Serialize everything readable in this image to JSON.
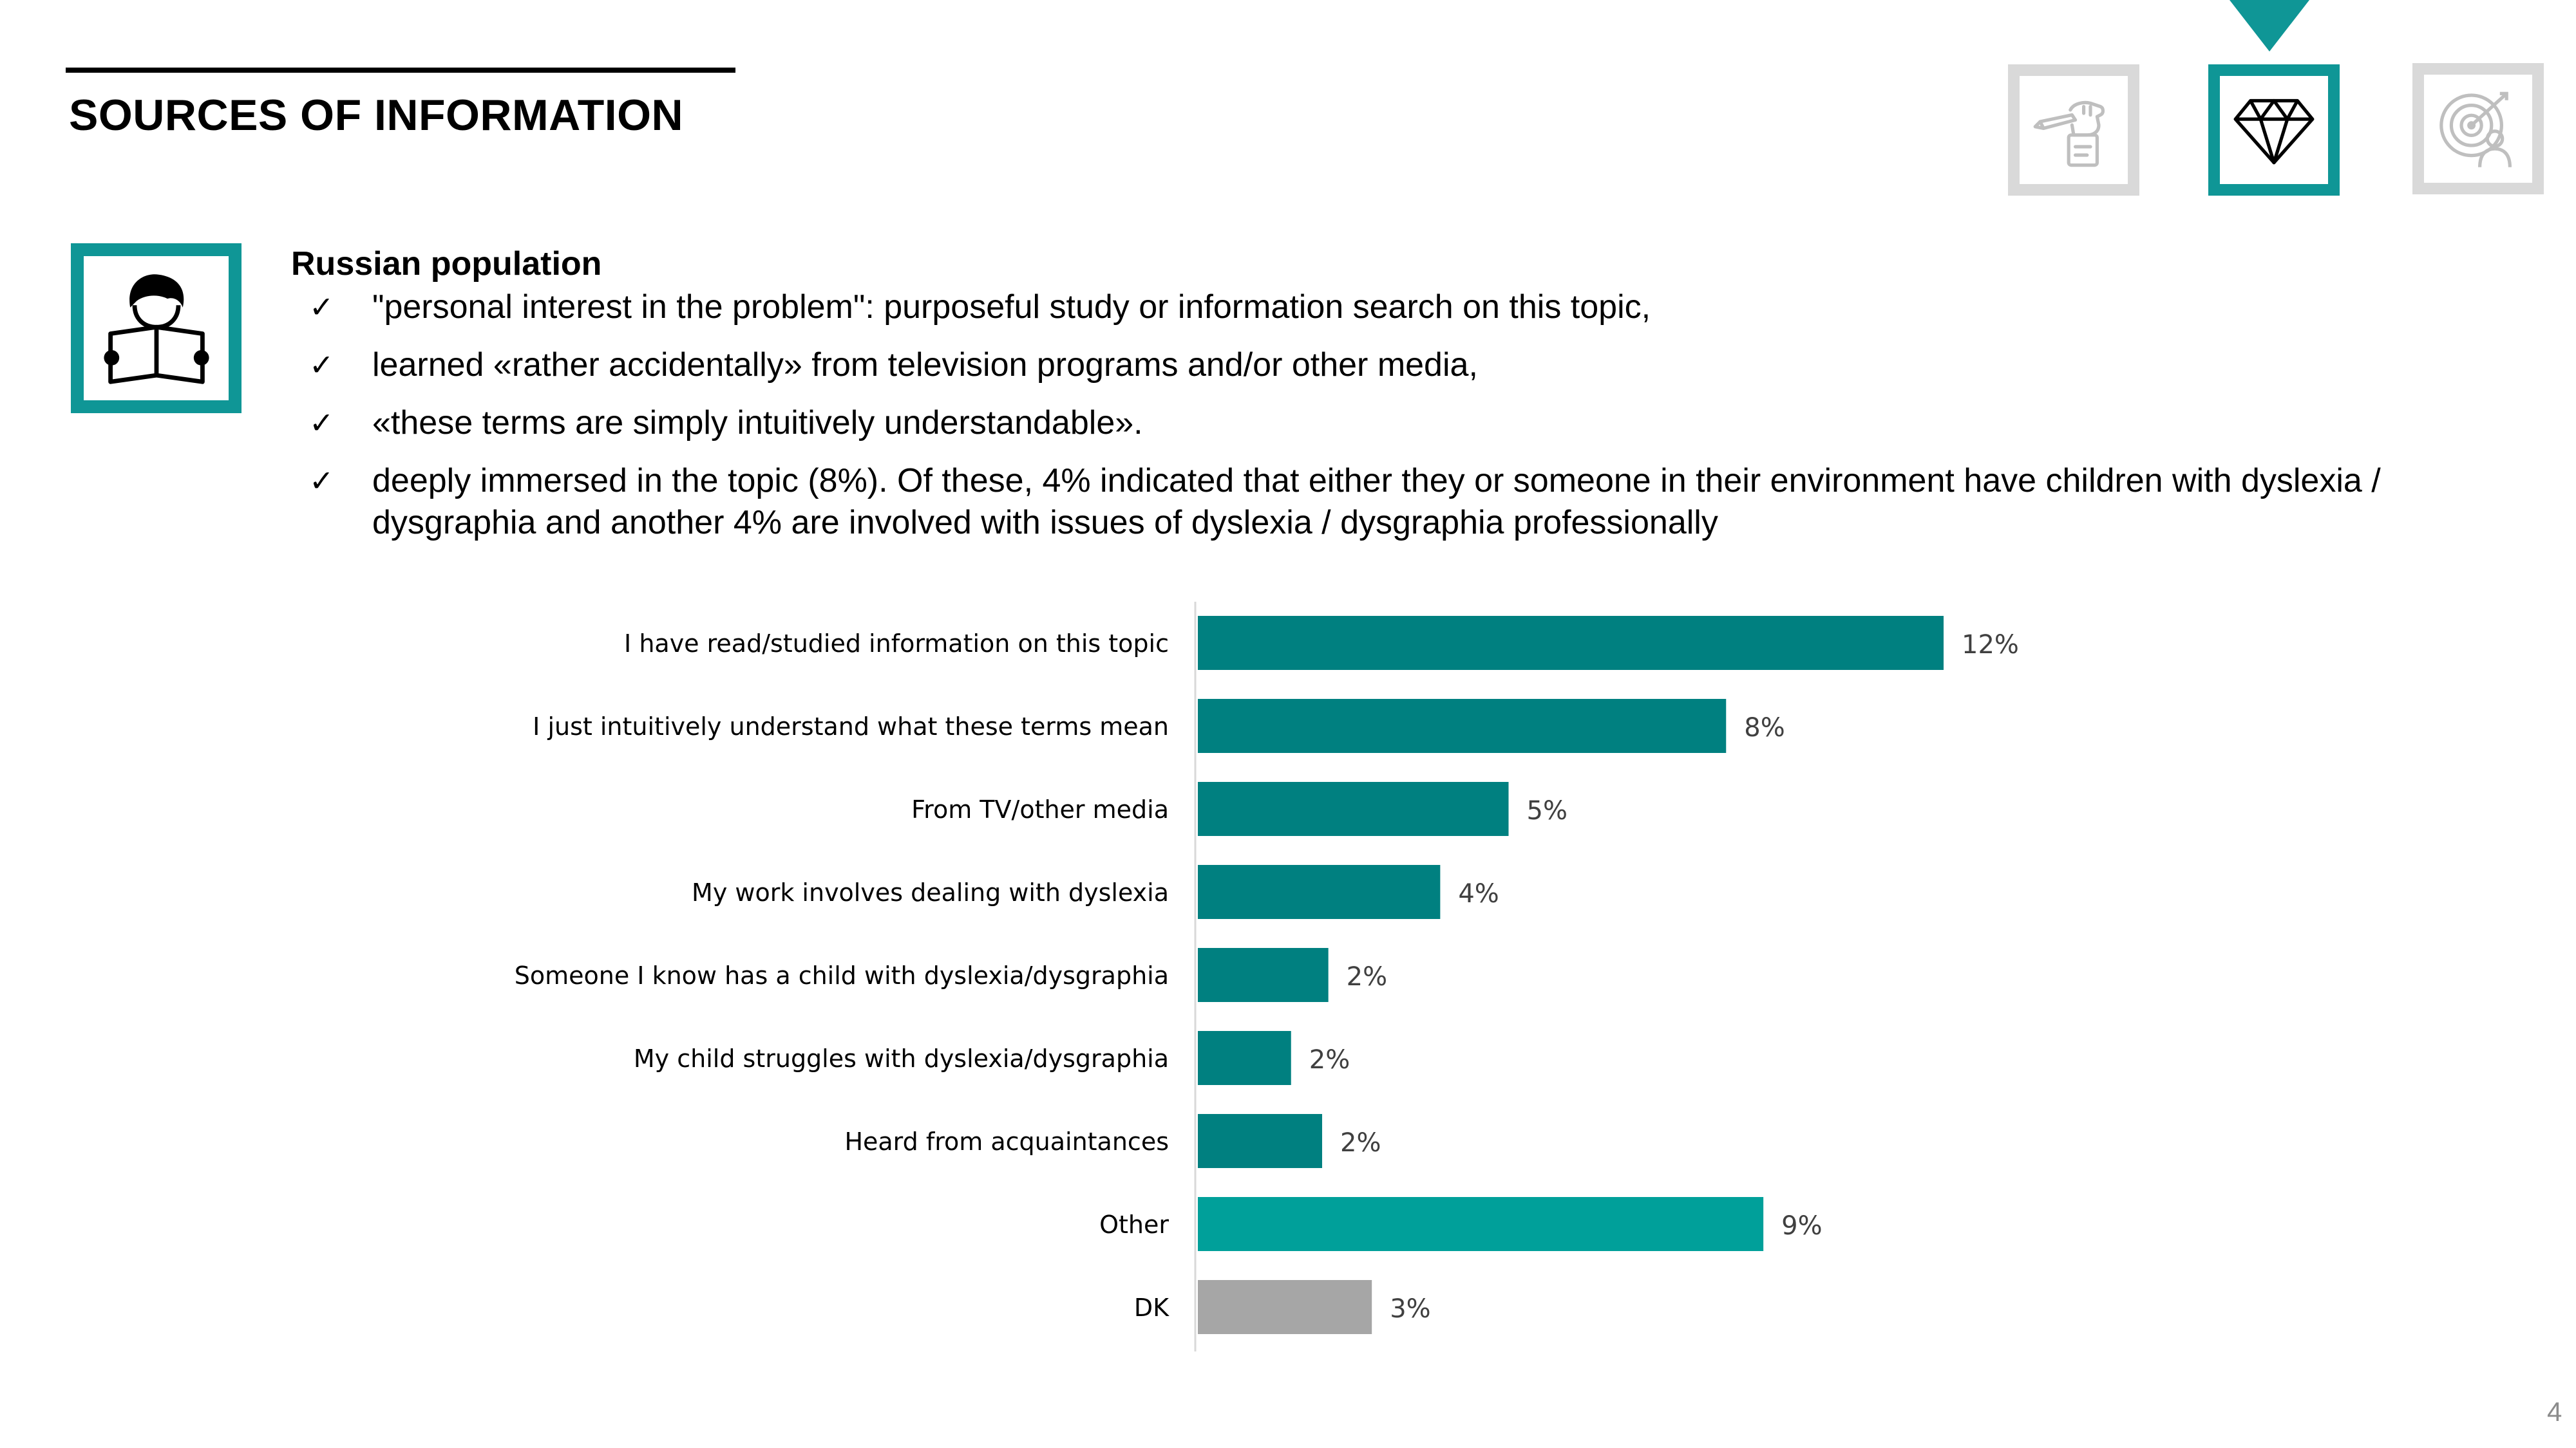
{
  "page": {
    "title": "SOURCES OF INFORMATION",
    "page_number": "4"
  },
  "nav_icons": [
    {
      "name": "hand-pen-icon",
      "state": "inactive"
    },
    {
      "name": "diamond-icon",
      "state": "active"
    },
    {
      "name": "target-person-icon",
      "state": "inactive"
    }
  ],
  "section": {
    "icon": "person-reading-book-icon",
    "heading": "Russian population",
    "bullets": [
      "\"personal interest in the problem\": purposeful study or information search on this topic,",
      "learned «rather accidentally» from television programs and/or other media,",
      "«these terms are simply intuitively understandable».",
      "deeply immersed in the topic (8%). Of these, 4% indicated that either they or someone in their environment have children with dyslexia / dysgraphia and another 4% are involved with issues of dyslexia / dysgraphia professionally"
    ],
    "check_glyph": "✓"
  },
  "colors": {
    "accent": "#0f9696",
    "bar_main": "#008080",
    "bar_other": "#00a09a",
    "bar_dk": "#a6a6a6",
    "nav_inactive": "#d9d9d9"
  },
  "chart_data": {
    "type": "bar",
    "orientation": "horizontal",
    "categories": [
      "I have read/studied information on this topic",
      "I just intuitively understand what these terms mean",
      "From TV/other media",
      "My work involves dealing with dyslexia",
      "Someone I know has a child with dyslexia/dysgraphia",
      "My child struggles with dyslexia/dysgraphia",
      "Heard from acquaintances",
      "Other",
      "DK"
    ],
    "values": [
      12,
      8.5,
      5,
      3.9,
      2.1,
      1.5,
      2,
      9.1,
      2.8
    ],
    "value_labels": [
      "12%",
      "8%",
      "5%",
      "4%",
      "2%",
      "2%",
      "2%",
      "9%",
      "3%"
    ],
    "bar_colors": [
      "#008080",
      "#008080",
      "#008080",
      "#008080",
      "#008080",
      "#008080",
      "#008080",
      "#00a09a",
      "#a6a6a6"
    ],
    "xlim": [
      0,
      13
    ],
    "grid": false,
    "legend": false
  }
}
